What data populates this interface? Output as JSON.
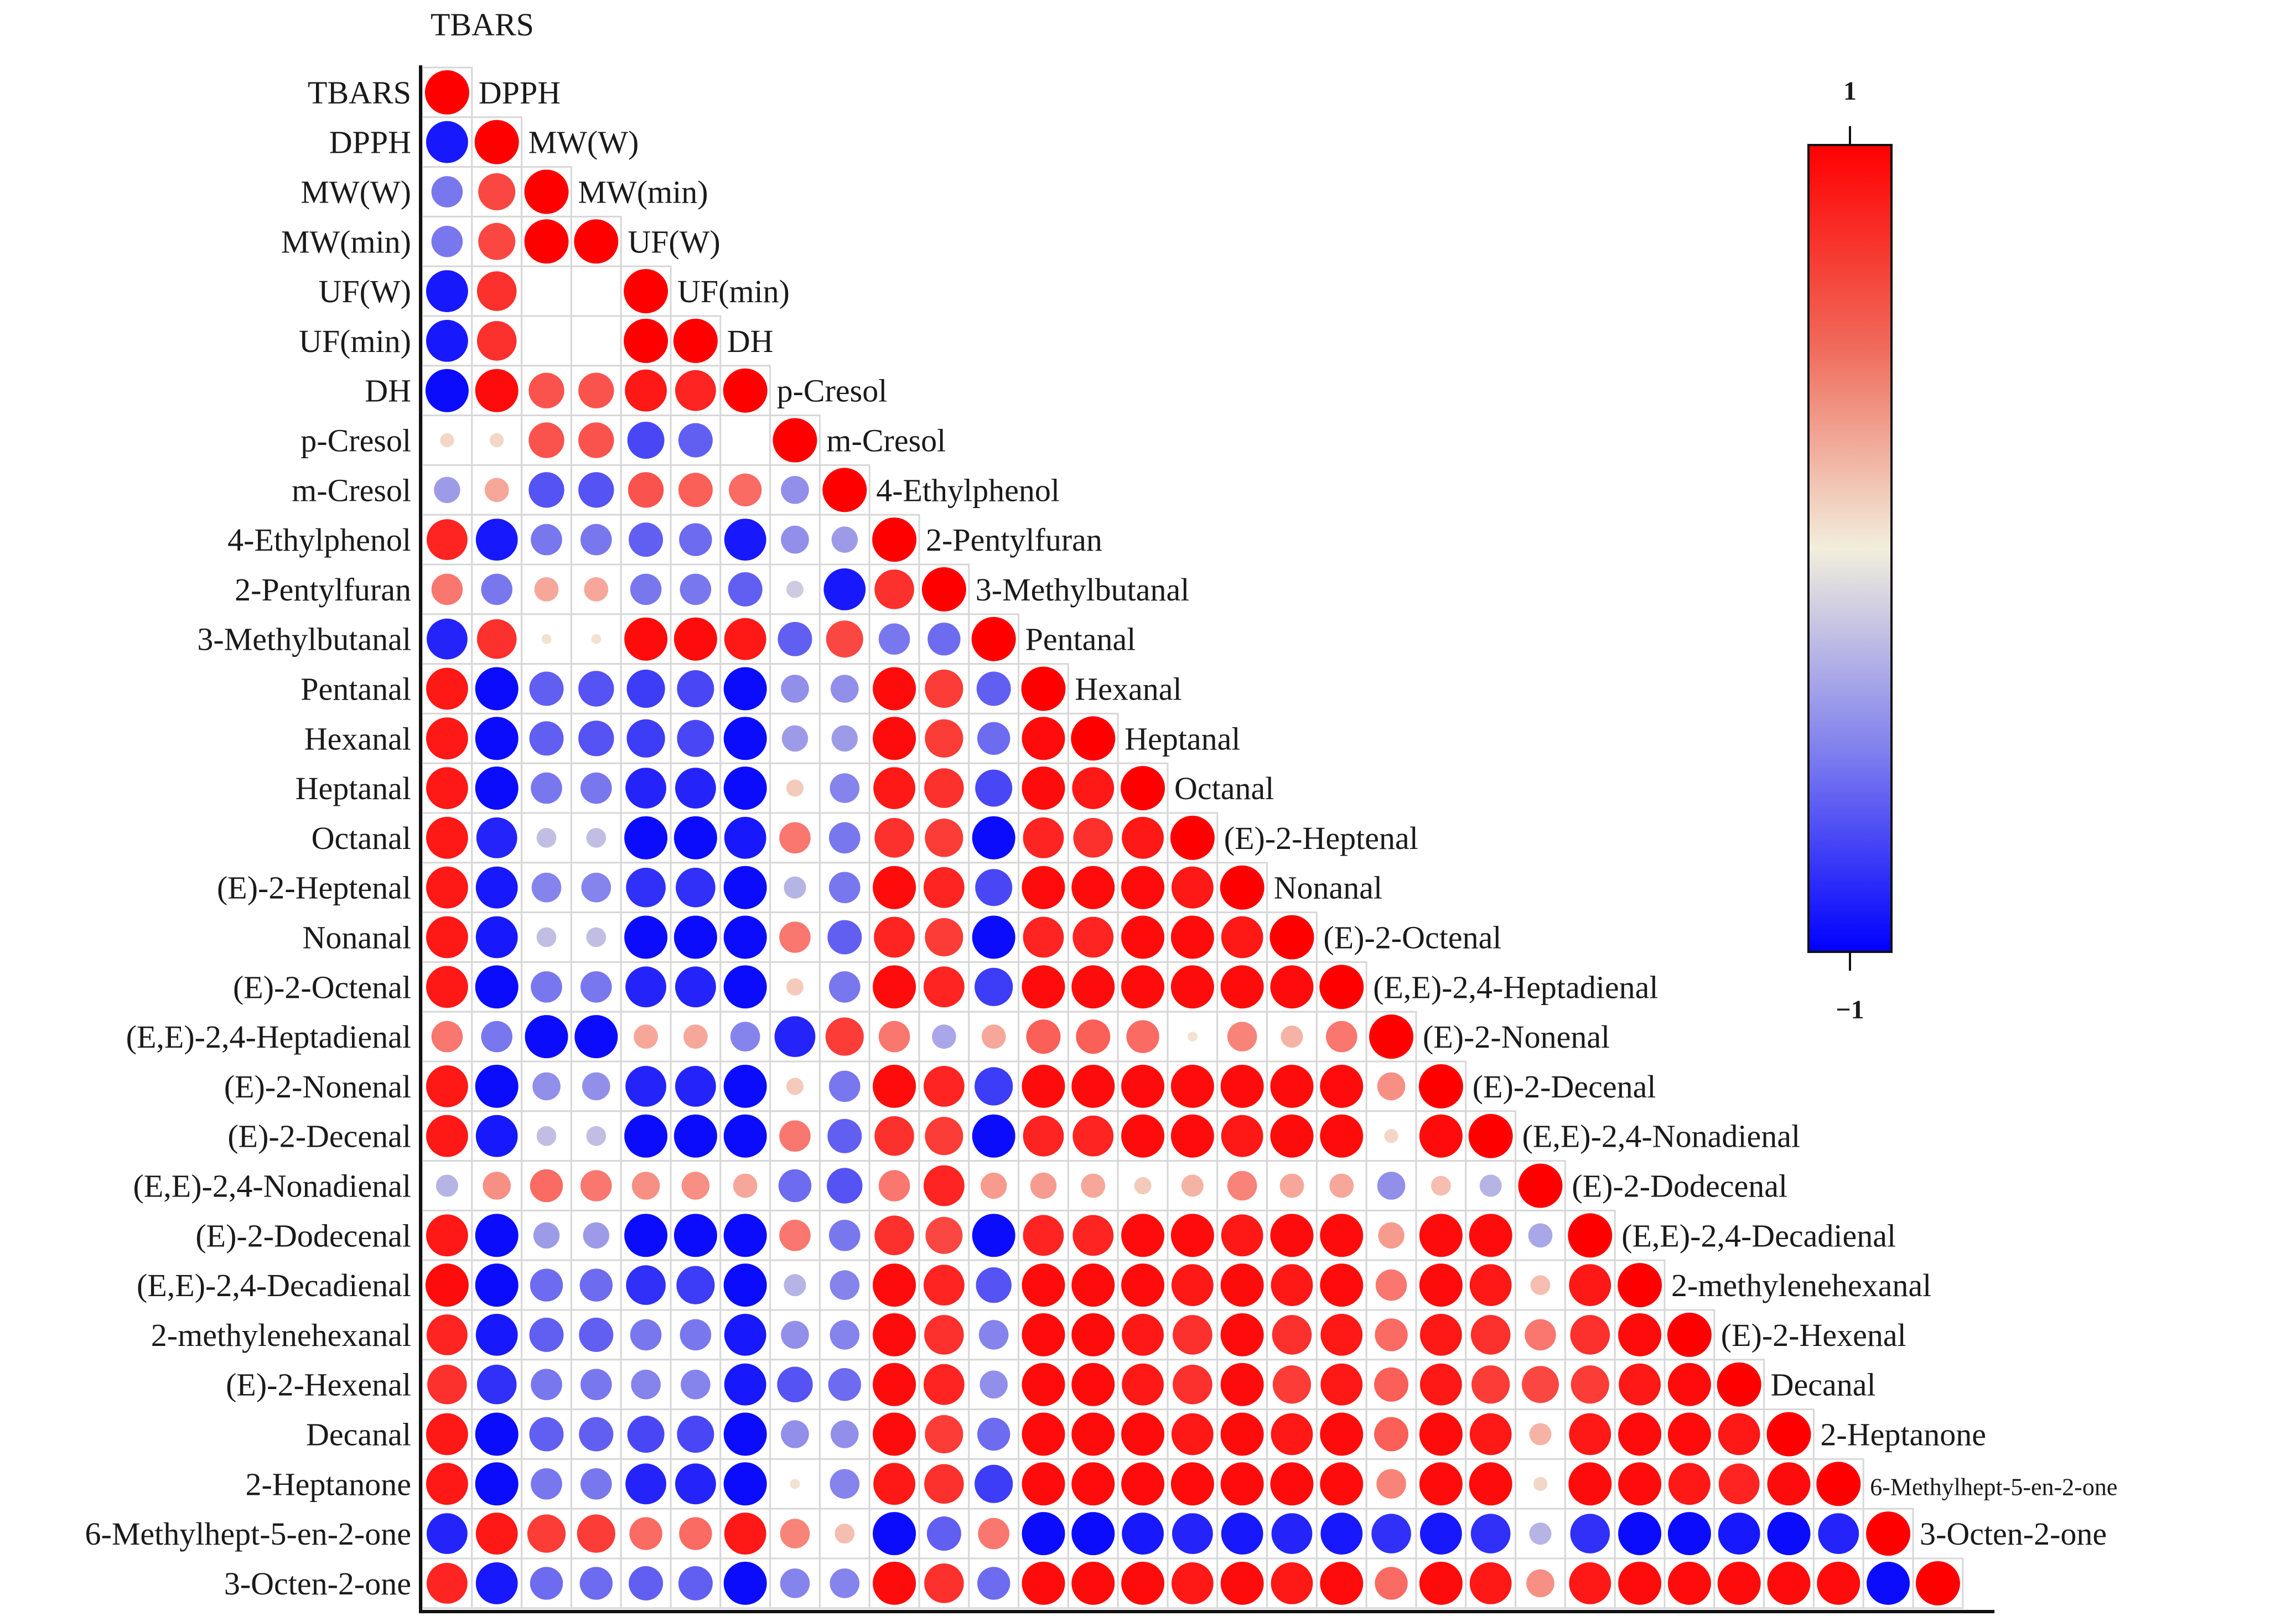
{
  "chart_data": {
    "type": "heatmap",
    "subtype": "correlation-circle-lower-triangle",
    "top_label": "TBARS",
    "variables": [
      "TBARS",
      "DPPH",
      "MW(W)",
      "MW(min)",
      "UF(W)",
      "UF(min)",
      "DH",
      "p-Cresol",
      "m-Cresol",
      "4-Ethylphenol",
      "2-Pentylfuran",
      "3-Methylbutanal",
      "Pentanal",
      "Hexanal",
      "Heptanal",
      "Octanal",
      "(E)-2-Heptenal",
      "Nonanal",
      "(E)-2-Octenal",
      "(E,E)-2,4-Heptadienal",
      "(E)-2-Nonenal",
      "(E)-2-Decenal",
      "(E,E)-2,4-Nonadienal",
      "(E)-2-Dodecenal",
      "(E,E)-2,4-Decadienal",
      "2-methylenehexanal",
      "(E)-2-Hexenal",
      "Decanal",
      "2-Heptanone",
      "6-Methylhept-5-en-2-one",
      "3-Octen-2-one"
    ],
    "matrix": [
      [
        1
      ],
      [
        -0.9,
        1
      ],
      [
        -0.5,
        0.7,
        1
      ],
      [
        -0.5,
        0.7,
        1,
        1
      ],
      [
        -0.9,
        0.8,
        0,
        0,
        1
      ],
      [
        -0.9,
        0.8,
        0,
        0,
        1,
        1
      ],
      [
        -0.95,
        0.95,
        0.65,
        0.65,
        0.9,
        0.85,
        1
      ],
      [
        0.1,
        0.1,
        0.65,
        0.65,
        -0.7,
        -0.6,
        0,
        1
      ],
      [
        -0.35,
        0.3,
        -0.65,
        -0.65,
        0.65,
        0.6,
        0.55,
        -0.4,
        1
      ],
      [
        0.85,
        -0.9,
        -0.5,
        -0.5,
        -0.6,
        -0.55,
        -0.9,
        -0.4,
        -0.35,
        1
      ],
      [
        0.5,
        -0.5,
        0.3,
        0.3,
        -0.5,
        -0.5,
        -0.6,
        -0.15,
        -0.9,
        0.8,
        1
      ],
      [
        -0.85,
        0.8,
        0.05,
        0.05,
        0.95,
        0.95,
        0.9,
        -0.6,
        0.7,
        -0.5,
        -0.55,
        1
      ],
      [
        0.9,
        -0.95,
        -0.6,
        -0.65,
        -0.75,
        -0.7,
        -0.95,
        -0.4,
        -0.4,
        0.95,
        0.75,
        -0.6,
        1
      ],
      [
        0.9,
        -0.95,
        -0.6,
        -0.65,
        -0.75,
        -0.7,
        -0.95,
        -0.35,
        -0.35,
        0.95,
        0.75,
        -0.55,
        0.95,
        1
      ],
      [
        0.9,
        -0.95,
        -0.5,
        -0.5,
        -0.85,
        -0.85,
        -0.95,
        0.15,
        -0.45,
        0.9,
        0.8,
        -0.7,
        0.95,
        0.9,
        1
      ],
      [
        0.9,
        -0.85,
        -0.2,
        -0.2,
        -0.95,
        -0.95,
        -0.9,
        0.5,
        -0.5,
        0.8,
        0.75,
        -0.95,
        0.85,
        0.8,
        0.9,
        1
      ],
      [
        0.9,
        -0.9,
        -0.45,
        -0.45,
        -0.8,
        -0.8,
        -0.95,
        -0.25,
        -0.5,
        0.95,
        0.85,
        -0.7,
        0.95,
        0.95,
        0.95,
        0.9,
        1
      ],
      [
        0.9,
        -0.9,
        -0.2,
        -0.2,
        -0.95,
        -0.95,
        -0.95,
        0.5,
        -0.6,
        0.85,
        0.75,
        -0.95,
        0.85,
        0.85,
        0.95,
        0.95,
        0.9,
        1
      ],
      [
        0.9,
        -0.95,
        -0.5,
        -0.5,
        -0.85,
        -0.85,
        -0.95,
        0.15,
        -0.5,
        0.95,
        0.85,
        -0.75,
        0.95,
        0.95,
        0.95,
        0.95,
        0.95,
        0.95,
        1
      ],
      [
        0.5,
        -0.5,
        -0.95,
        -0.95,
        0.3,
        0.3,
        -0.45,
        -0.85,
        0.75,
        0.5,
        -0.3,
        0.3,
        0.6,
        0.6,
        0.55,
        0.05,
        0.45,
        0.25,
        0.5,
        1
      ],
      [
        0.9,
        -0.95,
        -0.4,
        -0.4,
        -0.85,
        -0.85,
        -0.95,
        0.15,
        -0.5,
        0.95,
        0.85,
        -0.75,
        0.95,
        0.95,
        0.95,
        0.95,
        0.95,
        0.95,
        0.95,
        0.4,
        1
      ],
      [
        0.9,
        -0.9,
        -0.2,
        -0.2,
        -0.95,
        -0.95,
        -0.95,
        0.5,
        -0.6,
        0.8,
        0.75,
        -0.95,
        0.85,
        0.85,
        0.95,
        0.95,
        0.9,
        0.95,
        0.95,
        0.1,
        0.95,
        1
      ],
      [
        -0.25,
        0.4,
        0.55,
        0.5,
        0.4,
        0.4,
        0.3,
        -0.55,
        -0.65,
        0.5,
        0.85,
        0.35,
        0.35,
        0.3,
        0.15,
        0.25,
        0.45,
        0.3,
        0.3,
        -0.4,
        0.2,
        -0.25,
        1
      ],
      [
        0.9,
        -0.95,
        -0.35,
        -0.35,
        -0.95,
        -0.95,
        -0.95,
        0.5,
        -0.5,
        0.8,
        0.7,
        -0.95,
        0.85,
        0.85,
        0.95,
        0.95,
        0.9,
        0.95,
        0.95,
        0.35,
        0.95,
        0.95,
        -0.3,
        1
      ],
      [
        0.95,
        -0.95,
        -0.55,
        -0.55,
        -0.8,
        -0.75,
        -0.95,
        -0.25,
        -0.45,
        0.95,
        0.85,
        -0.65,
        0.95,
        0.95,
        0.95,
        0.9,
        0.95,
        0.9,
        0.95,
        0.5,
        0.95,
        0.9,
        0.2,
        0.9,
        1
      ],
      [
        0.85,
        -0.9,
        -0.6,
        -0.6,
        -0.5,
        -0.5,
        -0.9,
        -0.4,
        -0.45,
        0.95,
        0.8,
        -0.45,
        0.95,
        0.95,
        0.9,
        0.8,
        0.95,
        0.8,
        0.9,
        0.55,
        0.9,
        0.8,
        0.5,
        0.8,
        0.95,
        1
      ],
      [
        0.8,
        -0.8,
        -0.5,
        -0.5,
        -0.45,
        -0.45,
        -0.9,
        -0.65,
        -0.55,
        0.95,
        0.85,
        -0.4,
        0.95,
        0.95,
        0.9,
        0.8,
        0.95,
        0.75,
        0.9,
        0.6,
        0.9,
        0.75,
        0.7,
        0.75,
        0.9,
        0.95,
        1
      ],
      [
        0.9,
        -0.95,
        -0.6,
        -0.6,
        -0.7,
        -0.7,
        -0.95,
        -0.4,
        -0.4,
        0.95,
        0.75,
        -0.55,
        0.95,
        0.95,
        0.95,
        0.9,
        0.95,
        0.9,
        0.95,
        0.6,
        0.95,
        0.9,
        0.25,
        0.9,
        0.95,
        0.95,
        0.9,
        1
      ],
      [
        0.9,
        -0.95,
        -0.5,
        -0.5,
        -0.85,
        -0.85,
        -0.95,
        0.05,
        -0.45,
        0.9,
        0.8,
        -0.75,
        0.95,
        0.95,
        0.95,
        0.95,
        0.95,
        0.95,
        0.95,
        0.45,
        0.95,
        0.95,
        0.1,
        0.95,
        0.95,
        0.9,
        0.85,
        0.95,
        1
      ],
      [
        -0.85,
        0.9,
        0.75,
        0.75,
        0.55,
        0.55,
        0.9,
        0.45,
        0.2,
        -0.95,
        -0.6,
        0.5,
        -0.95,
        -0.95,
        -0.9,
        -0.85,
        -0.9,
        -0.85,
        -0.9,
        -0.8,
        -0.9,
        -0.8,
        -0.25,
        -0.8,
        -0.95,
        -0.95,
        -0.9,
        -0.95,
        -0.85,
        1
      ],
      [
        0.85,
        -0.9,
        -0.55,
        -0.55,
        -0.6,
        -0.6,
        -0.95,
        -0.45,
        -0.45,
        0.95,
        0.8,
        -0.55,
        0.95,
        0.95,
        0.95,
        0.9,
        0.95,
        0.9,
        0.95,
        0.55,
        0.95,
        0.9,
        0.4,
        0.9,
        0.95,
        0.95,
        0.95,
        0.95,
        0.95,
        -0.95,
        1
      ]
    ],
    "legend": {
      "title": "",
      "max_label": "1",
      "min_label": "−1",
      "range": [
        -1,
        1
      ],
      "colors": [
        "#0000ff",
        "#f2eedc",
        "#ff0000"
      ]
    }
  }
}
